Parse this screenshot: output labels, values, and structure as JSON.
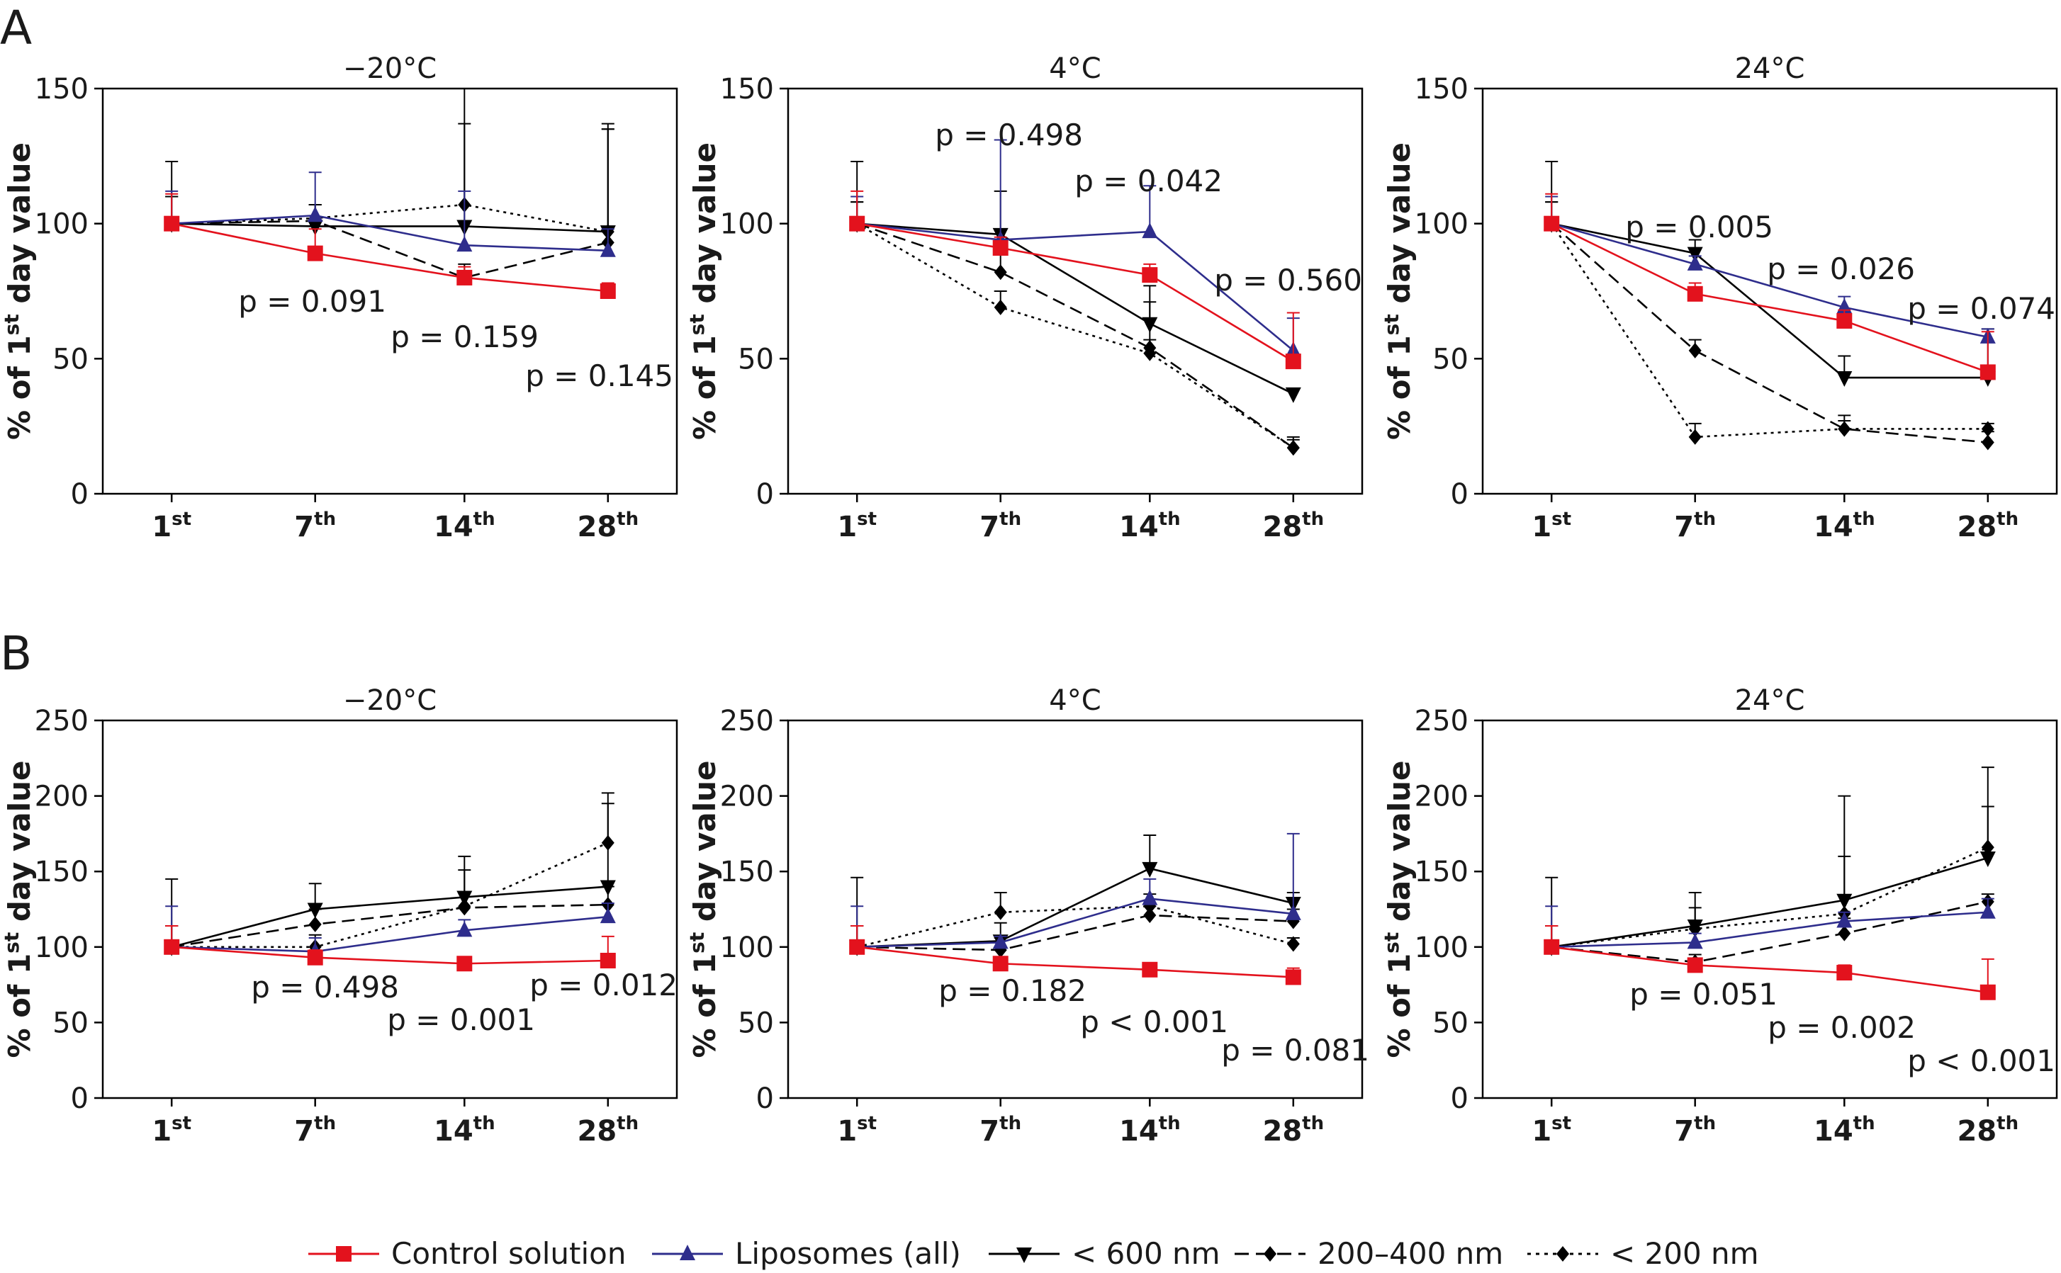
{
  "panels": [
    {
      "letter": "A",
      "charts": [
        {
          "title": "−20°C",
          "ylabel": "% of 1st day value",
          "ylim": [
            0,
            150
          ],
          "yticks": [
            0,
            50,
            100,
            150
          ]
        },
        {
          "title": "4°C",
          "ylabel": "% of 1st day value",
          "ylim": [
            0,
            150
          ],
          "yticks": [
            0,
            50,
            100,
            150
          ]
        },
        {
          "title": "24°C",
          "ylabel": "% of 1st day value",
          "ylim": [
            0,
            150
          ],
          "yticks": [
            0,
            50,
            100,
            150
          ]
        }
      ]
    },
    {
      "letter": "B",
      "charts": [
        {
          "title": "−20°C",
          "ylabel": "% of 1st day value",
          "ylim": [
            0,
            250
          ],
          "yticks": [
            0,
            50,
            100,
            150,
            200,
            250
          ]
        },
        {
          "title": "4°C",
          "ylabel": "% of 1st day value",
          "ylim": [
            0,
            250
          ],
          "yticks": [
            0,
            50,
            100,
            150,
            200,
            250
          ]
        },
        {
          "title": "24°C",
          "ylabel": "% of 1st day value",
          "ylim": [
            0,
            250
          ],
          "yticks": [
            0,
            50,
            100,
            150,
            200,
            250
          ]
        }
      ]
    }
  ],
  "ylabel_parts": {
    "prefix": "% of 1",
    "sup": "st",
    "suffix": " day value"
  },
  "x_ticks": [
    {
      "num": "1",
      "sup": "st"
    },
    {
      "num": "7",
      "sup": "th"
    },
    {
      "num": "14",
      "sup": "th"
    },
    {
      "num": "28",
      "sup": "th"
    }
  ],
  "legend": [
    {
      "key": "control",
      "label": "Control solution"
    },
    {
      "key": "liposomes",
      "label": "Liposomes (all)"
    },
    {
      "key": "lt600",
      "label": "< 600 nm"
    },
    {
      "key": "r200_400",
      "label": "200–400 nm"
    },
    {
      "key": "lt200",
      "label": "< 200 nm"
    }
  ],
  "colors": {
    "control": "#e3121d",
    "liposomes": "#2e2d8c",
    "black": "#000000"
  },
  "chart_data": [
    {
      "type": "line",
      "panel": "A",
      "title": "−20°C",
      "categories": [
        "1st",
        "7th",
        "14th",
        "28th"
      ],
      "ylim": [
        0,
        150
      ],
      "series": [
        {
          "name": "Control solution",
          "values": [
            100,
            89,
            80,
            75
          ],
          "err": [
            11,
            9,
            4,
            3
          ]
        },
        {
          "name": "Liposomes (all)",
          "values": [
            100,
            103,
            92,
            90
          ],
          "err": [
            12,
            16,
            20,
            8
          ]
        },
        {
          "name": "< 600 nm",
          "values": [
            100,
            99,
            99,
            97
          ],
          "err": [
            23,
            8,
            51,
            40
          ]
        },
        {
          "name": "200–400 nm",
          "values": [
            100,
            101,
            80,
            93
          ],
          "err": [
            10,
            6,
            5,
            42
          ]
        },
        {
          "name": "< 200 nm",
          "values": [
            100,
            102,
            107,
            97
          ],
          "err": [
            10,
            5,
            30,
            38
          ]
        }
      ],
      "annotations": [
        "p = 0.091",
        "p = 0.159",
        "p = 0.145"
      ]
    },
    {
      "type": "line",
      "panel": "A",
      "title": "4°C",
      "categories": [
        "1st",
        "7th",
        "14th",
        "28th"
      ],
      "ylim": [
        0,
        150
      ],
      "series": [
        {
          "name": "Control solution",
          "values": [
            100,
            91,
            81,
            49
          ],
          "err": [
            12,
            4,
            4,
            18
          ]
        },
        {
          "name": "Liposomes (all)",
          "values": [
            100,
            94,
            97,
            53
          ],
          "err": [
            10,
            37,
            17,
            12
          ]
        },
        {
          "name": "< 600 nm",
          "values": [
            100,
            96,
            63,
            37
          ],
          "err": [
            23,
            16,
            14,
            2
          ]
        },
        {
          "name": "200–400 nm",
          "values": [
            100,
            82,
            54,
            17
          ],
          "err": [
            8,
            7,
            17,
            4
          ]
        },
        {
          "name": "< 200 nm",
          "values": [
            100,
            69,
            52,
            17
          ],
          "err": [
            8,
            6,
            5,
            3
          ]
        }
      ],
      "annotations": [
        "p = 0.498",
        "p = 0.042",
        "p = 0.560"
      ]
    },
    {
      "type": "line",
      "panel": "A",
      "title": "24°C",
      "categories": [
        "1st",
        "7th",
        "14th",
        "28th"
      ],
      "ylim": [
        0,
        150
      ],
      "series": [
        {
          "name": "Control solution",
          "values": [
            100,
            74,
            64,
            45
          ],
          "err": [
            11,
            4,
            4,
            15
          ]
        },
        {
          "name": "Liposomes (all)",
          "values": [
            100,
            85,
            69,
            58
          ],
          "err": [
            10,
            3,
            4,
            3
          ]
        },
        {
          "name": "< 600 nm",
          "values": [
            100,
            89,
            43,
            43
          ],
          "err": [
            23,
            5,
            8,
            18
          ]
        },
        {
          "name": "200–400 nm",
          "values": [
            100,
            53,
            24,
            19
          ],
          "err": [
            8,
            4,
            5,
            4
          ]
        },
        {
          "name": "< 200 nm",
          "values": [
            100,
            21,
            24,
            24
          ],
          "err": [
            8,
            5,
            3,
            2
          ]
        }
      ],
      "annotations": [
        "p = 0.005",
        "p = 0.026",
        "p = 0.074"
      ]
    },
    {
      "type": "line",
      "panel": "B",
      "title": "−20°C",
      "categories": [
        "1st",
        "7th",
        "14th",
        "28th"
      ],
      "ylim": [
        0,
        250
      ],
      "series": [
        {
          "name": "Control solution",
          "values": [
            100,
            93,
            89,
            91
          ],
          "err": [
            14,
            5,
            3,
            16
          ]
        },
        {
          "name": "Liposomes (all)",
          "values": [
            100,
            97,
            111,
            120
          ],
          "err": [
            27,
            9,
            7,
            9
          ]
        },
        {
          "name": "< 600 nm",
          "values": [
            100,
            125,
            133,
            140
          ],
          "err": [
            45,
            17,
            27,
            55
          ]
        },
        {
          "name": "200–400 nm",
          "values": [
            100,
            115,
            126,
            128
          ],
          "err": [
            14,
            10,
            10,
            12
          ]
        },
        {
          "name": "< 200 nm",
          "values": [
            100,
            100,
            127,
            169
          ],
          "err": [
            14,
            8,
            24,
            33
          ]
        }
      ],
      "annotations": [
        "p = 0.498",
        "p = 0.001",
        "p = 0.012"
      ]
    },
    {
      "type": "line",
      "panel": "B",
      "title": "4°C",
      "categories": [
        "1st",
        "7th",
        "14th",
        "28th"
      ],
      "ylim": [
        0,
        250
      ],
      "series": [
        {
          "name": "Control solution",
          "values": [
            100,
            89,
            85,
            80
          ],
          "err": [
            14,
            4,
            4,
            6
          ]
        },
        {
          "name": "Liposomes (all)",
          "values": [
            100,
            103,
            132,
            122
          ],
          "err": [
            27,
            4,
            13,
            53
          ]
        },
        {
          "name": "< 600 nm",
          "values": [
            100,
            104,
            152,
            129
          ],
          "err": [
            46,
            12,
            22,
            7
          ]
        },
        {
          "name": "200–400 nm",
          "values": [
            100,
            98,
            121,
            117
          ],
          "err": [
            14,
            8,
            6,
            8
          ]
        },
        {
          "name": "< 200 nm",
          "values": [
            100,
            123,
            127,
            102
          ],
          "err": [
            14,
            13,
            8,
            4
          ]
        }
      ],
      "annotations": [
        "p = 0.182",
        "p < 0.001",
        "p = 0.081"
      ]
    },
    {
      "type": "line",
      "panel": "B",
      "title": "24°C",
      "categories": [
        "1st",
        "7th",
        "14th",
        "28th"
      ],
      "ylim": [
        0,
        250
      ],
      "series": [
        {
          "name": "Control solution",
          "values": [
            100,
            88,
            83,
            70
          ],
          "err": [
            14,
            4,
            5,
            22
          ]
        },
        {
          "name": "Liposomes (all)",
          "values": [
            100,
            103,
            117,
            123
          ],
          "err": [
            27,
            6,
            6,
            9
          ]
        },
        {
          "name": "< 600 nm",
          "values": [
            100,
            114,
            131,
            159
          ],
          "err": [
            46,
            22,
            69,
            60
          ]
        },
        {
          "name": "200–400 nm",
          "values": [
            100,
            90,
            109,
            130
          ],
          "err": [
            14,
            5,
            10,
            5
          ]
        },
        {
          "name": "< 200 nm",
          "values": [
            100,
            112,
            122,
            166
          ],
          "err": [
            14,
            14,
            38,
            27
          ]
        }
      ],
      "annotations": [
        "p = 0.051",
        "p = 0.002",
        "p < 0.001"
      ]
    }
  ]
}
